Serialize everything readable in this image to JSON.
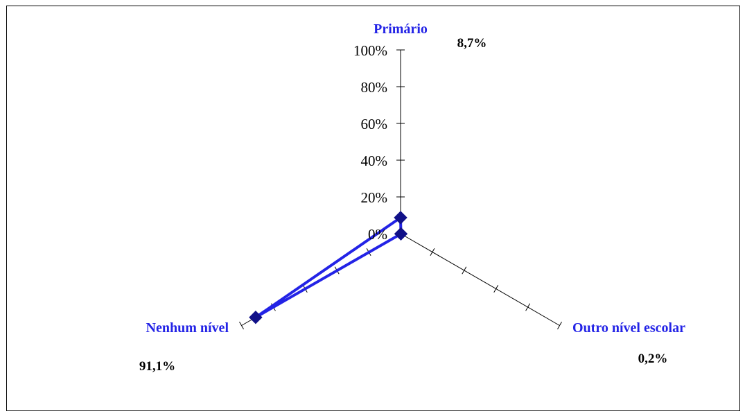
{
  "chart_data": {
    "type": "radar",
    "categories": [
      "Primário",
      "Outro nível escolar",
      "Nenhum nível"
    ],
    "series": [
      {
        "values": [
          8.7,
          0.2,
          91.1
        ]
      }
    ],
    "data_labels": [
      "8,7%",
      "0,2%",
      "91,1%"
    ],
    "radial_axis": {
      "min": 0,
      "max": 100,
      "step": 20,
      "tick_labels": [
        "0%",
        "20%",
        "40%",
        "60%",
        "80%",
        "100%"
      ]
    },
    "grid": false,
    "legend": "none"
  },
  "colors": {
    "series_line": "#2323e6",
    "marker": "#101088",
    "category_label": "#2323e6",
    "axis": "#000000",
    "border": "#000000"
  }
}
